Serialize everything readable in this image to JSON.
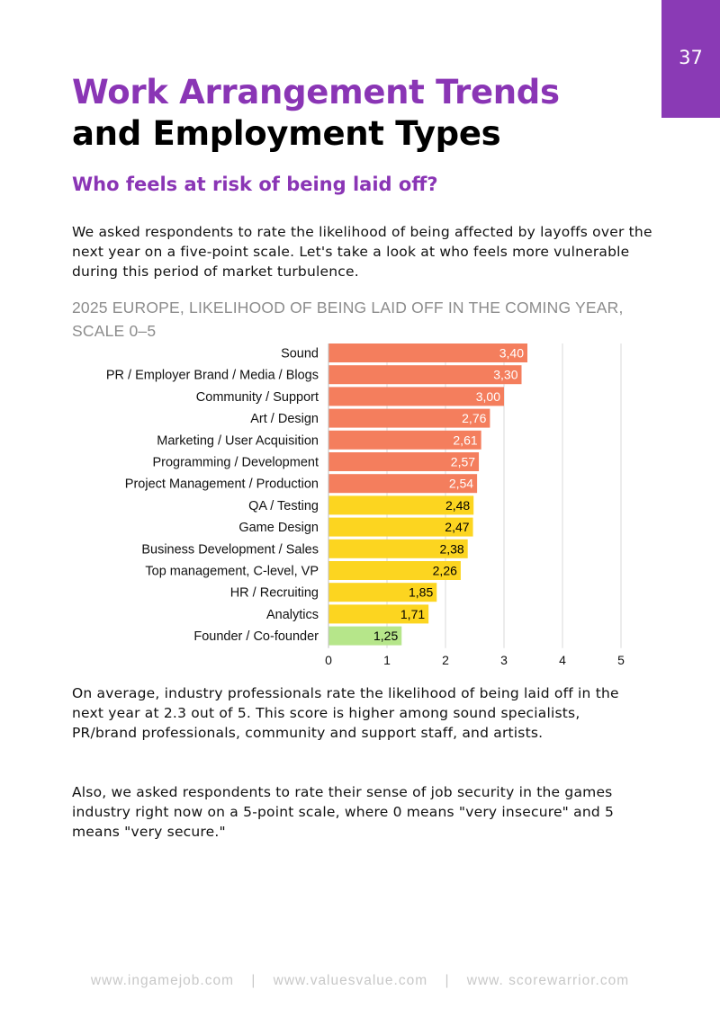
{
  "page": {
    "number": "37",
    "accent_color": "#8a35b5"
  },
  "header": {
    "title_line1": "Work Arrangement Trends",
    "title_line2": "and Employment Types",
    "subtitle": "Who feels at risk of being laid off?"
  },
  "intro_text": "We asked respondents to rate the likelihood of being affected by layoffs over the next year on a five-point scale. Let's take a look at who feels more vulnerable during this period of market turbulence.",
  "chart_data": {
    "type": "bar",
    "orientation": "horizontal",
    "title": "2025 EUROPE, LIKELIHOOD OF BEING LAID OFF IN THE COMING YEAR, SCALE 0–5",
    "categories": [
      "Sound",
      "PR / Employer Brand / Media / Blogs",
      "Community / Support",
      "Art / Design",
      "Marketing / User Acquisition",
      "Programming / Development",
      "Project Management / Production",
      "QA / Testing",
      "Game Design",
      "Business Development / Sales",
      "Top management, C-level, VP",
      "HR / Recruiting",
      "Analytics",
      "Founder / Co-founder"
    ],
    "values": [
      3.4,
      3.3,
      3.0,
      2.76,
      2.61,
      2.57,
      2.54,
      2.48,
      2.47,
      2.38,
      2.26,
      1.85,
      1.71,
      1.25
    ],
    "value_labels": [
      "3,40",
      "3,30",
      "3,00",
      "2,76",
      "2,61",
      "2,57",
      "2,54",
      "2,48",
      "2,47",
      "2,38",
      "2,26",
      "1,85",
      "1,71",
      "1,25"
    ],
    "bar_colors": [
      "#f47e5d",
      "#f47e5d",
      "#f47e5d",
      "#f47e5d",
      "#f47e5d",
      "#f47e5d",
      "#f47e5d",
      "#fcd520",
      "#fcd520",
      "#fcd520",
      "#fcd520",
      "#fcd520",
      "#fcd520",
      "#b6e68a"
    ],
    "label_colors": [
      "#ffffff",
      "#ffffff",
      "#ffffff",
      "#ffffff",
      "#ffffff",
      "#ffffff",
      "#ffffff",
      "#000000",
      "#000000",
      "#000000",
      "#000000",
      "#000000",
      "#000000",
      "#000000"
    ],
    "xlim": [
      0,
      5
    ],
    "x_ticks": [
      "0",
      "1",
      "2",
      "3",
      "4",
      "5"
    ],
    "grid": true,
    "xlabel": "",
    "ylabel": ""
  },
  "paragraph1": "On average, industry professionals rate the likelihood of being laid off in the next year at 2.3 out of 5. This score is higher among sound specialists, PR/brand professionals, community and support staff, and artists.",
  "paragraph2": "Also, we asked respondents to rate their sense of job security in the games industry right now on a 5-point scale, where 0 means \"very insecure\" and 5 means \"very secure.\"",
  "footer": {
    "links": [
      "www.ingamejob.com",
      "www.valuesvalue.com",
      "www. scorewarrior.com"
    ],
    "separator": "|"
  }
}
